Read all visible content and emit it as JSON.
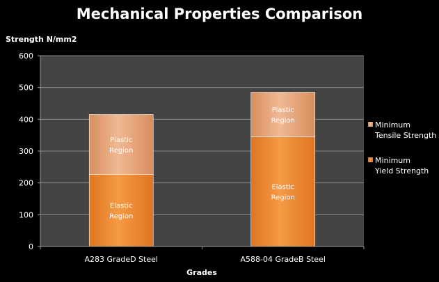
{
  "chart_data": {
    "type": "bar",
    "stacked": true,
    "title": "Mechanical Properties Comparison",
    "ylabel": "Strength N/mm2",
    "xlabel": "Grades",
    "ylim": [
      0,
      600
    ],
    "yticks": [
      0,
      100,
      200,
      300,
      400,
      500,
      600
    ],
    "grid": true,
    "legend_position": "right",
    "categories": [
      "A283 GradeD Steel",
      "A588-04 GradeB Steel"
    ],
    "series": [
      {
        "name": "Minimum Yield Strength",
        "color": "#f28a2e",
        "values": [
          227,
          345
        ],
        "region_labels": [
          "Elastic Region",
          "Elastic Region"
        ]
      },
      {
        "name": "Minimum Tensile Strength",
        "color": "#e9a77a",
        "values": [
          188,
          140
        ],
        "region_labels": [
          "Plastic Region",
          "Plastic Region"
        ]
      }
    ],
    "legend": [
      "Minimum Tensile Strength",
      "Minimum Yield Strength"
    ],
    "colors": {
      "plot_bg": "#444444",
      "grid": "#8a8a8a",
      "page_bg": "#000000"
    }
  }
}
